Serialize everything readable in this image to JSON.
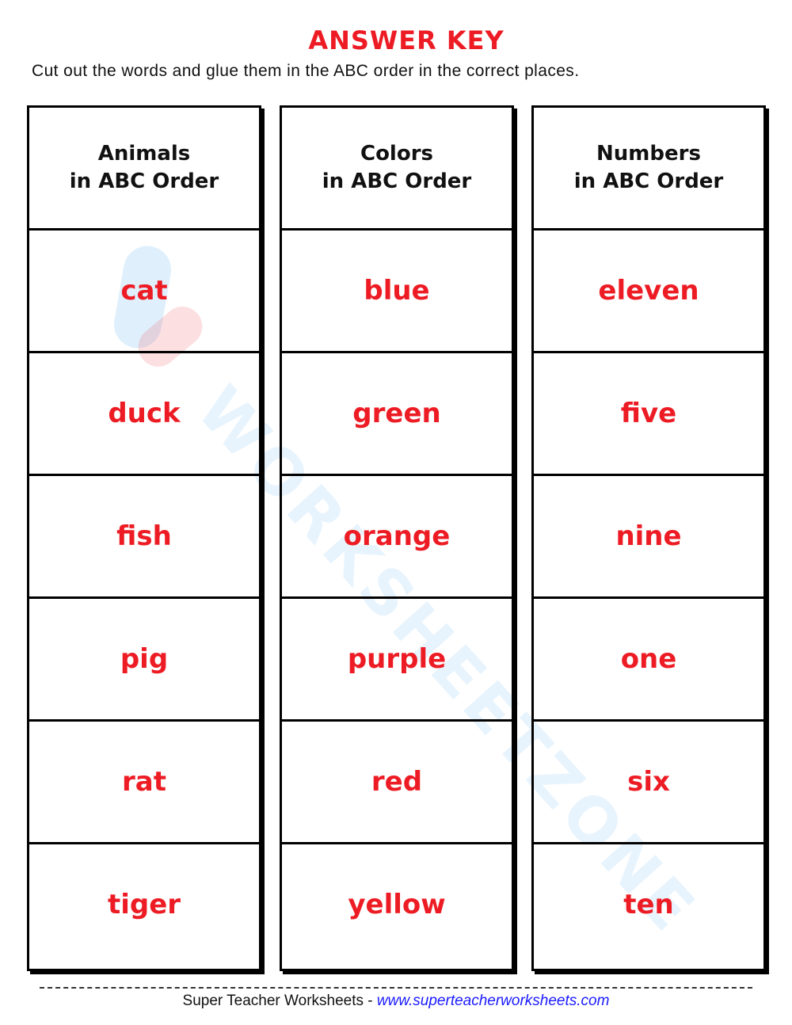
{
  "title": "ANSWER KEY",
  "instructions": "Cut out the words and glue them in the ABC order in the correct places.",
  "watermark": "WORKSHEETZONE",
  "columns": [
    {
      "header": "Animals\nin ABC Order",
      "words": [
        "cat",
        "duck",
        "fish",
        "pig",
        "rat",
        "tiger"
      ]
    },
    {
      "header": "Colors\nin ABC Order",
      "words": [
        "blue",
        "green",
        "orange",
        "purple",
        "red",
        "yellow"
      ]
    },
    {
      "header": "Numbers\nin ABC Order",
      "words": [
        "eleven",
        "five",
        "nine",
        "one",
        "six",
        "ten"
      ]
    }
  ],
  "footer": {
    "brand": "Super Teacher Worksheets - ",
    "url": "www.superteacherworksheets.com"
  },
  "colors": {
    "accent": "#ed1c24",
    "link": "#1a1aff"
  }
}
